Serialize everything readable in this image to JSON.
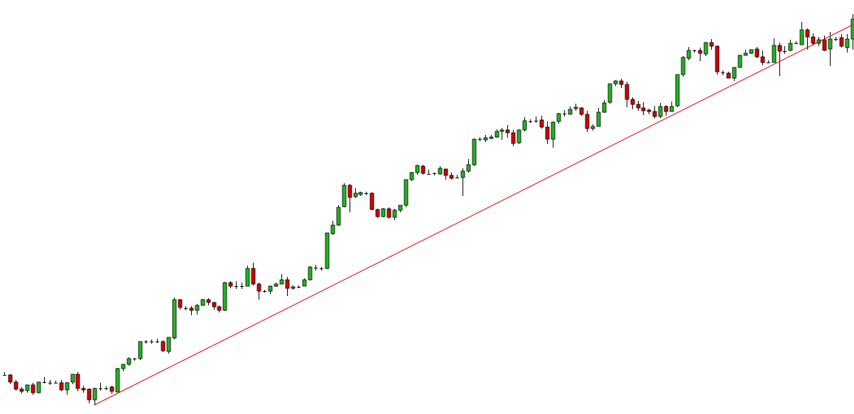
{
  "chart_data": {
    "type": "candlestick",
    "title": "",
    "xlabel": "",
    "ylabel": "",
    "grid": false,
    "legend": "none",
    "ylim": [
      0,
      583
    ],
    "candle_count": 151,
    "colors": {
      "up": "#22b522",
      "down": "#d40000",
      "outline": "#000000",
      "trendline": "#e00000",
      "background": "#ffffff"
    },
    "candles": [
      [
        55,
        56,
        59,
        54
      ],
      [
        55,
        45,
        56,
        42
      ],
      [
        45,
        35,
        48,
        33
      ],
      [
        35,
        32,
        38,
        29
      ],
      [
        33,
        41,
        41,
        30
      ],
      [
        41,
        30,
        44,
        27
      ],
      [
        30,
        45,
        45,
        29
      ],
      [
        45,
        45,
        52,
        43
      ],
      [
        44,
        44,
        48,
        41
      ],
      [
        44,
        44,
        47,
        43
      ],
      [
        44,
        34,
        48,
        32
      ],
      [
        34,
        44,
        45,
        27
      ],
      [
        45,
        56,
        56,
        42
      ],
      [
        56,
        36,
        59,
        32
      ],
      [
        36,
        34,
        40,
        30
      ],
      [
        35,
        20,
        36,
        15
      ],
      [
        20,
        36,
        37,
        12
      ],
      [
        36,
        36,
        44,
        33
      ],
      [
        36,
        37,
        39,
        34
      ],
      [
        38,
        32,
        40,
        28
      ],
      [
        31,
        64,
        65,
        31
      ],
      [
        64,
        70,
        70,
        60
      ],
      [
        70,
        78,
        80,
        68
      ],
      [
        78,
        78,
        79,
        75
      ],
      [
        78,
        102,
        102,
        76
      ],
      [
        102,
        102,
        104,
        99
      ],
      [
        102,
        102,
        105,
        99
      ],
      [
        102,
        103,
        106,
        100
      ],
      [
        102,
        89,
        104,
        87
      ],
      [
        88,
        108,
        108,
        85
      ],
      [
        107,
        161,
        164,
        105
      ],
      [
        161,
        150,
        162,
        147
      ],
      [
        150,
        149,
        152,
        146
      ],
      [
        149,
        146,
        152,
        139
      ],
      [
        146,
        153,
        155,
        140
      ],
      [
        153,
        161,
        162,
        154
      ],
      [
        161,
        157,
        163,
        153
      ],
      [
        157,
        151,
        158,
        147
      ],
      [
        151,
        146,
        153,
        143
      ],
      [
        146,
        185,
        186,
        145
      ],
      [
        185,
        180,
        187,
        177
      ],
      [
        180,
        180,
        187,
        176
      ],
      [
        180,
        180,
        185,
        176
      ],
      [
        180,
        205,
        209,
        180
      ],
      [
        205,
        183,
        213,
        181
      ],
      [
        183,
        173,
        185,
        161
      ],
      [
        173,
        173,
        175,
        171
      ],
      [
        173,
        180,
        181,
        169
      ],
      [
        180,
        183,
        185,
        179
      ],
      [
        183,
        189,
        197,
        183
      ],
      [
        189,
        177,
        193,
        166
      ],
      [
        177,
        179,
        181,
        175
      ],
      [
        179,
        180,
        181,
        177
      ],
      [
        180,
        189,
        191,
        180
      ],
      [
        189,
        207,
        208,
        188
      ],
      [
        206,
        206,
        210,
        202
      ],
      [
        206,
        205,
        207,
        202
      ],
      [
        205,
        255,
        255,
        204
      ],
      [
        254,
        266,
        272,
        252
      ],
      [
        266,
        291,
        294,
        265
      ],
      [
        292,
        322,
        325,
        291
      ],
      [
        322,
        305,
        324,
        284
      ],
      [
        306,
        311,
        318,
        304
      ],
      [
        309,
        312,
        313,
        307
      ],
      [
        311,
        311,
        313,
        308
      ],
      [
        311,
        288,
        312,
        287
      ],
      [
        288,
        278,
        289,
        276
      ],
      [
        278,
        289,
        290,
        277
      ],
      [
        289,
        277,
        291,
        275
      ],
      [
        277,
        287,
        289,
        273
      ],
      [
        287,
        294,
        294,
        284
      ],
      [
        294,
        330,
        330,
        291
      ],
      [
        330,
        340,
        341,
        328
      ],
      [
        340,
        350,
        351,
        337
      ],
      [
        349,
        339,
        351,
        337
      ],
      [
        339,
        338,
        344,
        338
      ],
      [
        339,
        339,
        340,
        336
      ],
      [
        338,
        346,
        349,
        337
      ],
      [
        345,
        336,
        345,
        330
      ],
      [
        336,
        332,
        340,
        330
      ],
      [
        333,
        334,
        337,
        332
      ],
      [
        333,
        342,
        346,
        307
      ],
      [
        342,
        351,
        359,
        340
      ],
      [
        351,
        387,
        388,
        349
      ],
      [
        387,
        387,
        390,
        384
      ],
      [
        386,
        389,
        393,
        383
      ],
      [
        388,
        390,
        393,
        387
      ],
      [
        390,
        398,
        401,
        389
      ],
      [
        398,
        400,
        403,
        386
      ],
      [
        400,
        396,
        407,
        389
      ],
      [
        396,
        381,
        400,
        377
      ],
      [
        382,
        400,
        401,
        380
      ],
      [
        400,
        413,
        418,
        398
      ],
      [
        412,
        413,
        415,
        410
      ],
      [
        413,
        414,
        419,
        410
      ],
      [
        414,
        404,
        420,
        402
      ],
      [
        404,
        387,
        412,
        380
      ],
      [
        387,
        411,
        412,
        375
      ],
      [
        412,
        423,
        424,
        409
      ],
      [
        424,
        423,
        428,
        419
      ],
      [
        422,
        429,
        433,
        422
      ],
      [
        430,
        432,
        437,
        427
      ],
      [
        431,
        422,
        432,
        420
      ],
      [
        422,
        402,
        427,
        397
      ],
      [
        402,
        405,
        408,
        399
      ],
      [
        405,
        425,
        431,
        405
      ],
      [
        425,
        438,
        442,
        424
      ],
      [
        439,
        465,
        465,
        437
      ],
      [
        465,
        469,
        470,
        462
      ],
      [
        469,
        464,
        472,
        459
      ],
      [
        464,
        443,
        468,
        432
      ],
      [
        443,
        436,
        446,
        429
      ],
      [
        436,
        431,
        441,
        427
      ],
      [
        431,
        427,
        439,
        421
      ],
      [
        428,
        426,
        430,
        422
      ],
      [
        426,
        419,
        434,
        416
      ],
      [
        419,
        433,
        438,
        417
      ],
      [
        433,
        426,
        435,
        420
      ],
      [
        426,
        433,
        440,
        428
      ],
      [
        434,
        478,
        478,
        432
      ],
      [
        478,
        502,
        504,
        475
      ],
      [
        501,
        512,
        517,
        498
      ],
      [
        512,
        512,
        513,
        509
      ],
      [
        512,
        508,
        516,
        497
      ],
      [
        507,
        523,
        524,
        504
      ],
      [
        523,
        518,
        528,
        513
      ],
      [
        518,
        482,
        519,
        478
      ],
      [
        481,
        481,
        484,
        477
      ],
      [
        480,
        473,
        482,
        474
      ],
      [
        473,
        488,
        488,
        469
      ],
      [
        488,
        505,
        506,
        488
      ],
      [
        505,
        508,
        513,
        506
      ],
      [
        508,
        513,
        513,
        507
      ],
      [
        514,
        503,
        517,
        501
      ],
      [
        503,
        495,
        512,
        491
      ],
      [
        495,
        496,
        498,
        495
      ],
      [
        495,
        519,
        529,
        496
      ],
      [
        519,
        511,
        523,
        476
      ],
      [
        511,
        512,
        518,
        507
      ],
      [
        512,
        522,
        527,
        511
      ],
      [
        522,
        523,
        525,
        522
      ],
      [
        520,
        541,
        552,
        523
      ],
      [
        541,
        531,
        543,
        513
      ],
      [
        531,
        522,
        536,
        519
      ],
      [
        522,
        527,
        531,
        518
      ],
      [
        527,
        512,
        533,
        511
      ],
      [
        514,
        528,
        538,
        490
      ],
      [
        528,
        528,
        531,
        525
      ],
      [
        530,
        518,
        535,
        516
      ],
      [
        516,
        528,
        535,
        509
      ],
      [
        528,
        556,
        563,
        513
      ],
      [
        556,
        552,
        559,
        543
      ],
      [
        552,
        541,
        556,
        535
      ],
      [
        540,
        532,
        542,
        527
      ],
      [
        529,
        523,
        537,
        512
      ],
      [
        525,
        508,
        532,
        505
      ],
      [
        510,
        506,
        513,
        499
      ],
      [
        506,
        500,
        512,
        493
      ],
      [
        500,
        486,
        504,
        462
      ],
      [
        486,
        484,
        487,
        480
      ]
    ],
    "trendline": [
      [
        16,
        13
      ],
      [
        150,
        548
      ]
    ]
  }
}
